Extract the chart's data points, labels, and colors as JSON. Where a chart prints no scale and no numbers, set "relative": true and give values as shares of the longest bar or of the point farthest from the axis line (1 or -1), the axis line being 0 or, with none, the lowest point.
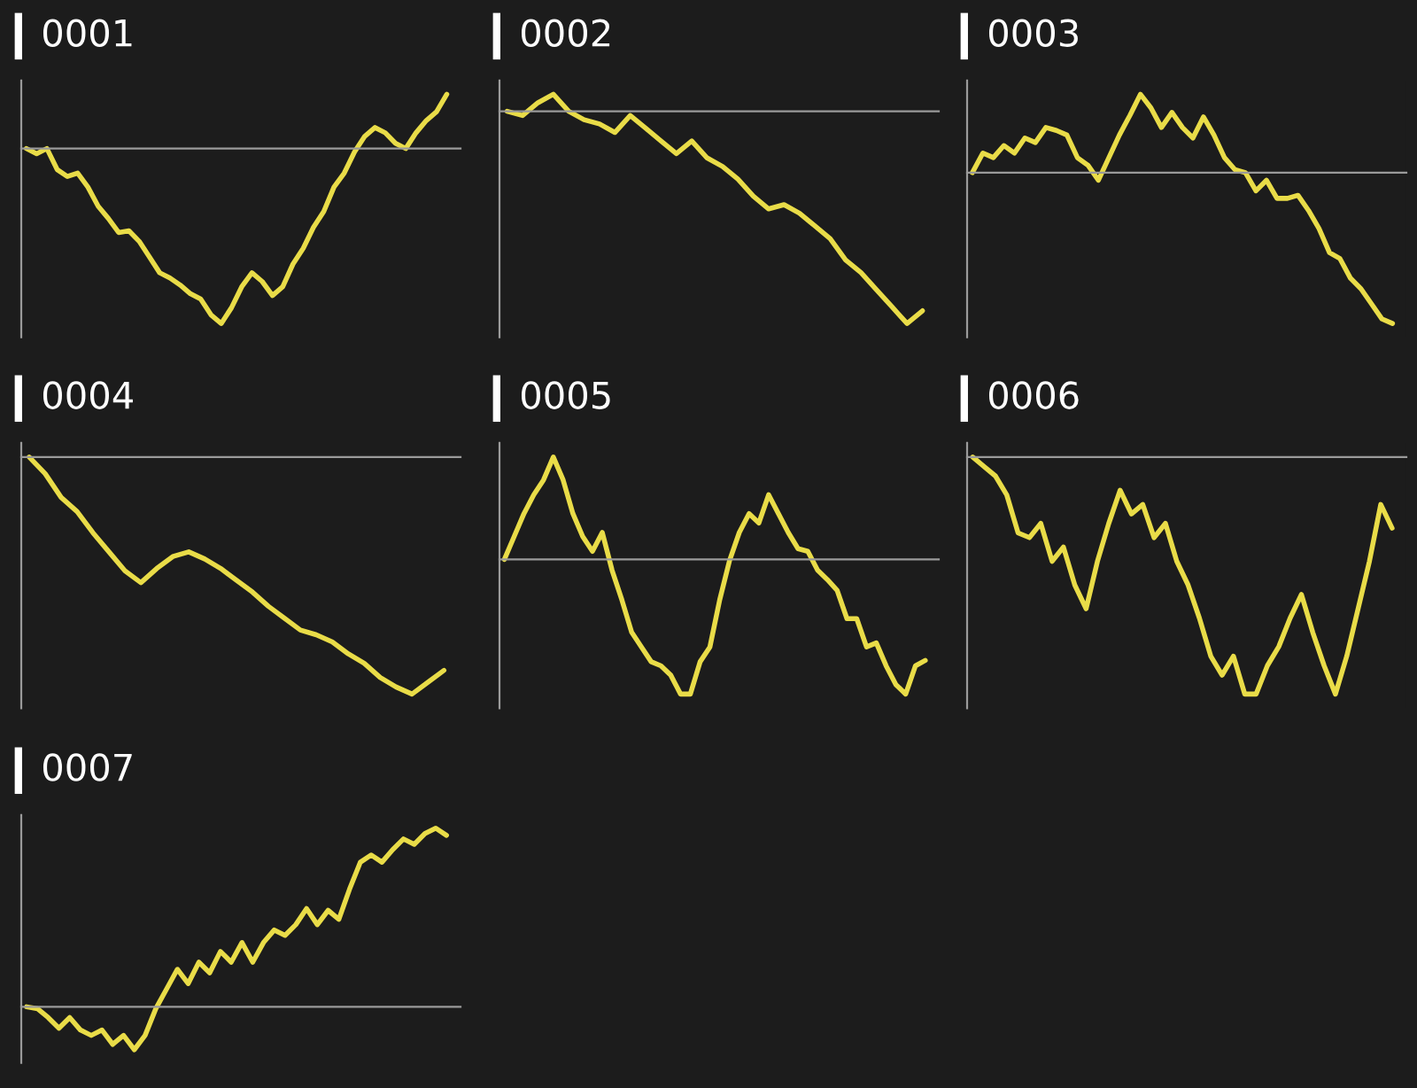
{
  "chart_data": [
    {
      "type": "line",
      "title": "0001",
      "relative": true,
      "color": "#e9dc48",
      "categories": [
        null,
        null,
        null,
        null,
        null,
        null,
        null,
        null,
        null,
        null,
        null,
        null,
        null,
        null,
        null,
        null,
        null,
        null,
        null,
        null,
        null,
        null,
        null,
        null,
        null,
        null,
        null,
        null,
        null,
        null,
        null,
        null,
        null,
        null,
        null,
        null,
        null,
        null,
        null,
        null,
        null,
        null
      ],
      "values": [
        0,
        -0.03,
        0,
        -0.12,
        -0.16,
        -0.14,
        -0.22,
        -0.33,
        -0.4,
        -0.48,
        -0.47,
        -0.53,
        -0.62,
        -0.71,
        -0.74,
        -0.78,
        -0.83,
        -0.86,
        -0.95,
        -1,
        -0.91,
        -0.79,
        -0.71,
        -0.76,
        -0.84,
        -0.79,
        -0.66,
        -0.57,
        -0.45,
        -0.36,
        -0.22,
        -0.14,
        -0.02,
        0.07,
        0.12,
        0.09,
        0.03,
        0,
        0.09,
        0.16,
        0.21,
        0.31
      ]
    },
    {
      "type": "line",
      "title": "0002",
      "relative": true,
      "color": "#e9dc48",
      "categories": [
        null,
        null,
        null,
        null,
        null,
        null,
        null,
        null,
        null,
        null,
        null,
        null,
        null,
        null,
        null,
        null,
        null,
        null,
        null,
        null,
        null,
        null,
        null,
        null,
        null,
        null,
        null,
        null
      ],
      "values": [
        0,
        -0.02,
        0.04,
        0.08,
        0,
        -0.04,
        -0.06,
        -0.1,
        -0.02,
        -0.08,
        -0.14,
        -0.2,
        -0.14,
        -0.22,
        -0.26,
        -0.32,
        -0.4,
        -0.46,
        -0.44,
        -0.48,
        -0.54,
        -0.6,
        -0.7,
        -0.76,
        -0.84,
        -0.92,
        -1,
        -0.94
      ]
    },
    {
      "type": "line",
      "title": "0003",
      "relative": true,
      "color": "#e9dc48",
      "categories": [
        null,
        null,
        null,
        null,
        null,
        null,
        null,
        null,
        null,
        null,
        null,
        null,
        null,
        null,
        null,
        null,
        null,
        null,
        null,
        null,
        null,
        null,
        null,
        null,
        null,
        null,
        null,
        null,
        null,
        null,
        null,
        null,
        null,
        null,
        null,
        null,
        null,
        null,
        null,
        null,
        null
      ],
      "values": [
        0,
        0.13,
        0.1,
        0.18,
        0.13,
        0.23,
        0.2,
        0.3,
        0.28,
        0.25,
        0.1,
        0.05,
        -0.05,
        0.1,
        0.25,
        0.38,
        0.52,
        0.43,
        0.3,
        0.4,
        0.3,
        0.23,
        0.37,
        0.25,
        0.1,
        0.02,
        0,
        -0.12,
        -0.05,
        -0.17,
        -0.17,
        -0.15,
        -0.25,
        -0.37,
        -0.53,
        -0.57,
        -0.7,
        -0.77,
        -0.87,
        -0.97,
        -1
      ]
    },
    {
      "type": "line",
      "title": "0004",
      "relative": true,
      "color": "#e9dc48",
      "categories": [
        null,
        null,
        null,
        null,
        null,
        null,
        null,
        null,
        null,
        null,
        null,
        null,
        null,
        null,
        null,
        null,
        null,
        null,
        null,
        null,
        null,
        null,
        null,
        null,
        null,
        null,
        null
      ],
      "values": [
        0,
        -0.07,
        -0.17,
        -0.23,
        -0.32,
        -0.4,
        -0.48,
        -0.53,
        -0.47,
        -0.42,
        -0.4,
        -0.43,
        -0.47,
        -0.52,
        -0.57,
        -0.63,
        -0.68,
        -0.73,
        -0.75,
        -0.78,
        -0.83,
        -0.87,
        -0.93,
        -0.97,
        -1,
        -0.95,
        -0.9
      ]
    },
    {
      "type": "line",
      "title": "0005",
      "relative": true,
      "color": "#e9dc48",
      "categories": [
        null,
        null,
        null,
        null,
        null,
        null,
        null,
        null,
        null,
        null,
        null,
        null,
        null,
        null,
        null,
        null,
        null,
        null,
        null,
        null,
        null,
        null,
        null,
        null,
        null,
        null,
        null,
        null,
        null,
        null,
        null,
        null,
        null,
        null,
        null,
        null,
        null,
        null,
        null,
        null,
        null,
        null,
        null,
        null
      ],
      "values": [
        0,
        0.17,
        0.34,
        0.48,
        0.59,
        0.76,
        0.59,
        0.34,
        0.17,
        0.06,
        0.2,
        -0.08,
        -0.3,
        -0.54,
        -0.65,
        -0.76,
        -0.79,
        -0.86,
        -1,
        -1,
        -0.76,
        -0.65,
        -0.3,
        -0.01,
        0.2,
        0.34,
        0.27,
        0.48,
        0.34,
        0.2,
        0.08,
        0.06,
        -0.08,
        -0.15,
        -0.23,
        -0.44,
        -0.44,
        -0.65,
        -0.62,
        -0.79,
        -0.93,
        -1,
        -0.79,
        -0.75
      ]
    },
    {
      "type": "line",
      "title": "0006",
      "relative": true,
      "color": "#e9dc48",
      "categories": [
        null,
        null,
        null,
        null,
        null,
        null,
        null,
        null,
        null,
        null,
        null,
        null,
        null,
        null,
        null,
        null,
        null,
        null,
        null,
        null,
        null,
        null,
        null,
        null,
        null,
        null,
        null,
        null,
        null,
        null,
        null,
        null,
        null,
        null,
        null,
        null,
        null,
        null
      ],
      "values": [
        0,
        -0.04,
        -0.08,
        -0.16,
        -0.32,
        -0.34,
        -0.28,
        -0.44,
        -0.38,
        -0.54,
        -0.64,
        -0.44,
        -0.28,
        -0.14,
        -0.24,
        -0.2,
        -0.34,
        -0.28,
        -0.44,
        -0.54,
        -0.68,
        -0.84,
        -0.92,
        -0.84,
        -1,
        -1,
        -0.88,
        -0.8,
        -0.68,
        -0.58,
        -0.74,
        -0.88,
        -1,
        -0.84,
        -0.64,
        -0.44,
        -0.2,
        -0.3
      ]
    },
    {
      "type": "line",
      "title": "0007",
      "relative": true,
      "color": "#e9dc48",
      "categories": [
        null,
        null,
        null,
        null,
        null,
        null,
        null,
        null,
        null,
        null,
        null,
        null,
        null,
        null,
        null,
        null,
        null,
        null,
        null,
        null,
        null,
        null,
        null,
        null,
        null,
        null,
        null,
        null,
        null,
        null,
        null,
        null,
        null,
        null,
        null,
        null,
        null,
        null,
        null,
        null
      ],
      "values": [
        0,
        -0.01,
        -0.06,
        -0.12,
        -0.06,
        -0.13,
        -0.16,
        -0.13,
        -0.21,
        -0.16,
        -0.24,
        -0.16,
        -0.01,
        0.1,
        0.21,
        0.13,
        0.25,
        0.19,
        0.31,
        0.25,
        0.36,
        0.25,
        0.36,
        0.43,
        0.4,
        0.46,
        0.55,
        0.46,
        0.54,
        0.49,
        0.66,
        0.81,
        0.85,
        0.81,
        0.88,
        0.94,
        0.91,
        0.97,
        1,
        0.96
      ]
    }
  ]
}
